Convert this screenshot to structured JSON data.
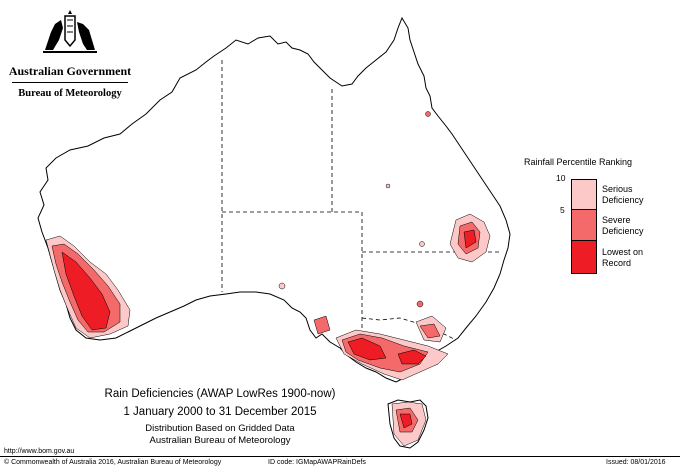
{
  "branding": {
    "government": "Australian Government",
    "bureau": "Bureau of Meteorology"
  },
  "legend": {
    "title": "Rainfall Percentile Ranking",
    "ticks": [
      "10",
      "5"
    ],
    "classes": [
      {
        "line1": "Serious",
        "line2": "Deficiency",
        "color": "#fcc8c8"
      },
      {
        "line1": "Severe",
        "line2": "Deficiency",
        "color": "#f46a6a"
      },
      {
        "line1": "Lowest on",
        "line2": "Record",
        "color": "#ee1c24"
      }
    ]
  },
  "map_title": {
    "line1": "Rain Deficiencies (AWAP LowRes 1900-now)",
    "line2": "1 January 2000 to 31 December 2015",
    "line3": "Distribution Based on Gridded Data",
    "line4": "Australian Bureau of Meteorology"
  },
  "footer": {
    "url": "http://www.bom.gov.au",
    "copyright": "© Commonwealth of Australia 2016, Australian Bureau of Meteorology",
    "id_code": "ID code: IGMapAWAPRainDefs",
    "issued": "Issued: 08/01/2016"
  }
}
